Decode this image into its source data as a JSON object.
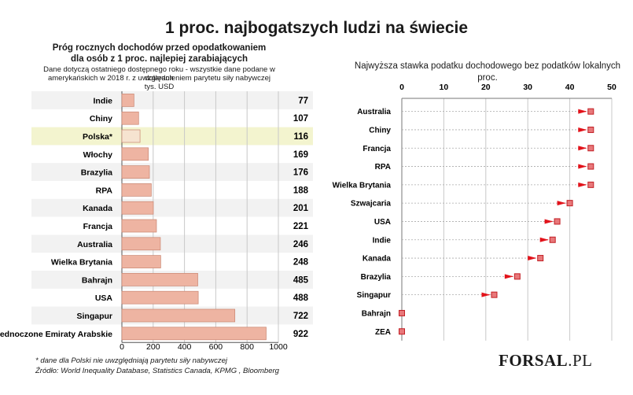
{
  "header": {
    "title": "1 proc. najbogatszych ludzi na świecie"
  },
  "left_note": {
    "line1": "Dane dotyczą ostatniego dostępnego roku - wszystkie dane podane w dolarach",
    "line2": "amerykańskich w 2018 r. z uwzględnieniem parytetu siły nabywczej",
    "unit": "tys. USD"
  },
  "footer": {
    "note": "* dane dla Polski nie uwzględniają parytetu siły nabywczej",
    "source": "Źródło: World Inequality Database, Statistics Canada, KPMG , Bloomberg"
  },
  "logo": {
    "main": "FORSAL",
    "suffix": ".PL"
  },
  "chart_data": [
    {
      "type": "bar",
      "orientation": "horizontal",
      "title_line1": "Próg rocznych dochodów przed opodatkowaniem",
      "title_line2": "dla osób z 1 proc. najlepiej zarabiających",
      "categories": [
        "Indie",
        "Chiny",
        "Polska*",
        "Włochy",
        "Brazylia",
        "RPA",
        "Kanada",
        "Francja",
        "Australia",
        "Wielka Brytania",
        "Bahrajn",
        "USA",
        "Singapur",
        "Zjednoczone Emiraty Arabskie"
      ],
      "values": [
        77,
        107,
        116,
        169,
        176,
        188,
        201,
        221,
        246,
        248,
        485,
        488,
        722,
        922
      ],
      "highlight": "Polska*",
      "xlim": [
        0,
        1000
      ],
      "xticks": [
        0,
        200,
        400,
        600,
        800,
        1000
      ],
      "bar_color": "#eeb4a2",
      "bar_border": "#c98571",
      "highlight_bar_color": "#f6e3d0",
      "highlight_band_color": "#f3f4cf"
    },
    {
      "type": "dot",
      "orientation": "horizontal",
      "title_line1": "Najwyższa stawka podatku dochodowego bez podatków lokalnych",
      "title_line2": "proc.",
      "categories": [
        "Australia",
        "Chiny",
        "Francja",
        "RPA",
        "Wielka Brytania",
        "Szwajcaria",
        "USA",
        "Indie",
        "Kanada",
        "Brazylia",
        "Singapur",
        "Bahrajn",
        "ZEA"
      ],
      "values": [
        45,
        45,
        45,
        45,
        45,
        40,
        37,
        35.9,
        33,
        27.5,
        22,
        0,
        0
      ],
      "xlim": [
        0,
        50
      ],
      "xticks": [
        0,
        10,
        20,
        30,
        40,
        50
      ],
      "marker_color": "#e8787a",
      "arrow_color": "#e2131b"
    }
  ]
}
